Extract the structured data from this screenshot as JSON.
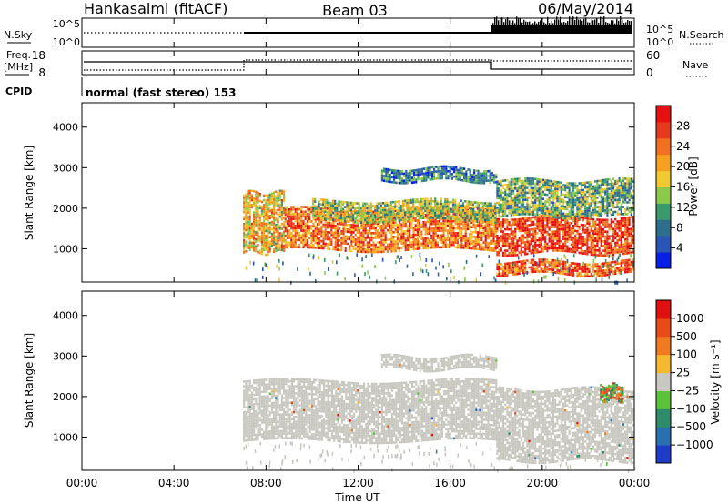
{
  "header": {
    "station": "Hankasalmi (fitACF)",
    "beam": "Beam 03",
    "date": "06/May/2014"
  },
  "params": {
    "nsky_label": "N.Sky",
    "nsearch_label": "N.Search",
    "freq_label_1": "Freq.",
    "freq_label_2": "[MHz]",
    "nave_label": "Nave",
    "cpid_label": "CPID",
    "cpid_value": "normal (fast stereo) 153",
    "noise_ticks_left": [
      "10^5",
      "10^0"
    ],
    "noise_ticks_right": [
      "10^5",
      "10^0"
    ],
    "freq_ticks": [
      "18",
      "8"
    ],
    "nave_ticks": [
      "60",
      "0"
    ]
  },
  "axes": {
    "x_label": "Time UT",
    "x_ticks": [
      "00:00",
      "04:00",
      "08:00",
      "12:00",
      "16:00",
      "20:00",
      "00:00"
    ],
    "y_label": "Slant Range [km]",
    "y_ticks": [
      "4000",
      "3000",
      "2000",
      "1000"
    ]
  },
  "colorbars": {
    "power": {
      "label": "Power [dB]",
      "ticks": [
        "28",
        "24",
        "20",
        "16",
        "12",
        "8",
        "4"
      ],
      "colors": [
        "#0a1fe6",
        "#2a55b5",
        "#2f6e8a",
        "#3a9a6e",
        "#8cc84a",
        "#f0c830",
        "#f5a020",
        "#f07020",
        "#e63a1e",
        "#e61010"
      ]
    },
    "velocity": {
      "label": "Velocity [m s⁻¹]",
      "ticks": [
        "1000",
        "500",
        "100",
        "25",
        "−25",
        "−100",
        "−500",
        "−1000"
      ],
      "colors": [
        "#1e3cc8",
        "#2a6fb0",
        "#2e8c6a",
        "#5cc23a",
        "#c8c8c0",
        "#f5b830",
        "#f07a20",
        "#e84a18",
        "#e01010"
      ]
    }
  },
  "chart_data": [
    {
      "type": "heatmap",
      "title": "Power",
      "xlabel": "Time UT",
      "ylabel": "Slant Range [km]",
      "xlim": [
        0,
        24
      ],
      "ylim": [
        180,
        4600
      ],
      "colorbar_label": "Power [dB]",
      "colorbar_range": [
        0,
        30
      ],
      "echo_regions": [
        {
          "t_start": 7.0,
          "t_end": 8.8,
          "range_low": 900,
          "range_high": 2400,
          "power": 18
        },
        {
          "t_start": 8.8,
          "t_end": 18.0,
          "range_low": 1000,
          "range_high": 2000,
          "power": 22
        },
        {
          "t_start": 10.0,
          "t_end": 18.0,
          "range_low": 1700,
          "range_high": 2200,
          "power": 14
        },
        {
          "t_start": 13.0,
          "t_end": 18.0,
          "range_low": 2700,
          "range_high": 3000,
          "power": 8
        },
        {
          "t_start": 18.0,
          "t_end": 24.0,
          "range_low": 900,
          "range_high": 1800,
          "power": 26
        },
        {
          "t_start": 18.0,
          "t_end": 24.0,
          "range_low": 400,
          "range_high": 700,
          "power": 24
        },
        {
          "t_start": 18.0,
          "t_end": 24.0,
          "range_low": 1800,
          "range_high": 2700,
          "power": 12
        }
      ]
    },
    {
      "type": "heatmap",
      "title": "Velocity",
      "xlabel": "Time UT",
      "ylabel": "Slant Range [km]",
      "xlim": [
        0,
        24
      ],
      "ylim": [
        180,
        4600
      ],
      "colorbar_label": "Velocity [m s⁻¹]",
      "colorbar_range": [
        -1000,
        1000
      ],
      "echo_regions": [
        {
          "t_start": 7.0,
          "t_end": 18.0,
          "range_low": 900,
          "range_high": 2400,
          "velocity": 0
        },
        {
          "t_start": 13.0,
          "t_end": 18.0,
          "range_low": 2700,
          "range_high": 3000,
          "velocity": 0
        },
        {
          "t_start": 18.0,
          "t_end": 24.0,
          "range_low": 400,
          "range_high": 2200,
          "velocity": 0
        },
        {
          "t_start": 22.5,
          "t_end": 23.5,
          "range_low": 1900,
          "range_high": 2300,
          "velocity": 150
        }
      ]
    }
  ]
}
